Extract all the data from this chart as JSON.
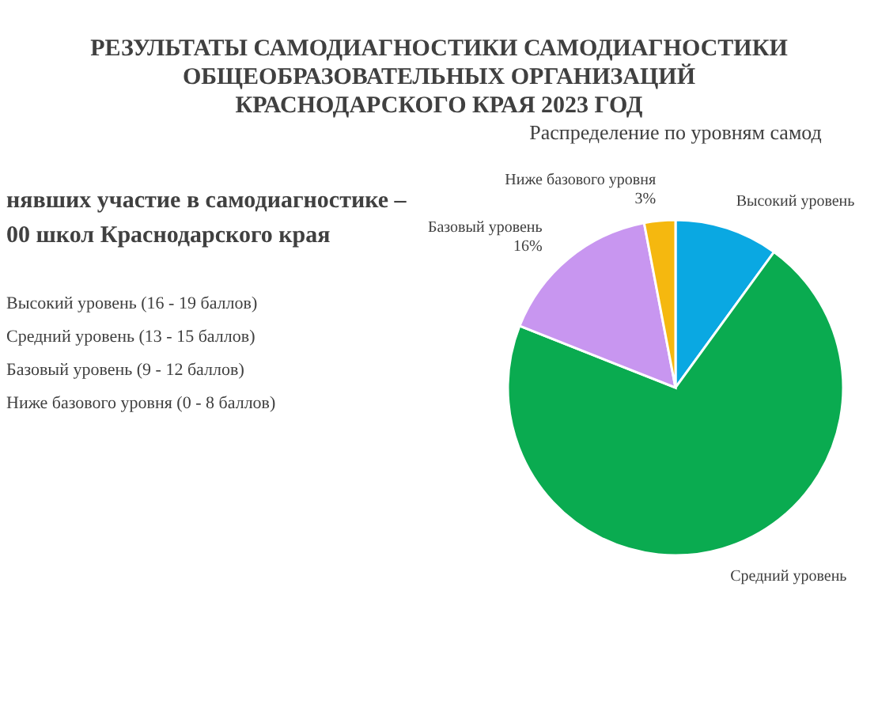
{
  "chart_data": {
    "type": "pie",
    "title": "РЕЗУЛЬТАТЫ САМОДИАГНОСТИКИ САМОДИАГНОСТИКИ\nОБЩЕОБРАЗОВАТЕЛЬНЫХ ОРГАНИЗАЦИЙ\nКРАСНОДАРСКОГО КРАЯ 2023 ГОД",
    "subtitle": "Распределение по уровням самод",
    "annotations": [
      "нявших участие в самодиагностике –\n00 школ Краснодарского края",
      "Высокий уровень (16 - 19 баллов)",
      "Средний уровень (13 - 15 баллов)",
      "Базовый уровень (9 - 12 баллов)",
      "Ниже базового уровня (0 - 8 баллов)"
    ],
    "categories": [
      "Высокий уровень",
      "Средний уровень",
      "Базовый уровень",
      "Ниже базового уровня"
    ],
    "values": [
      10,
      71,
      16,
      3
    ],
    "value_labels": [
      null,
      null,
      "16%",
      "3%"
    ],
    "colors": [
      "#0aa8e2",
      "#0aab50",
      "#c896f0",
      "#f5b80f"
    ]
  }
}
